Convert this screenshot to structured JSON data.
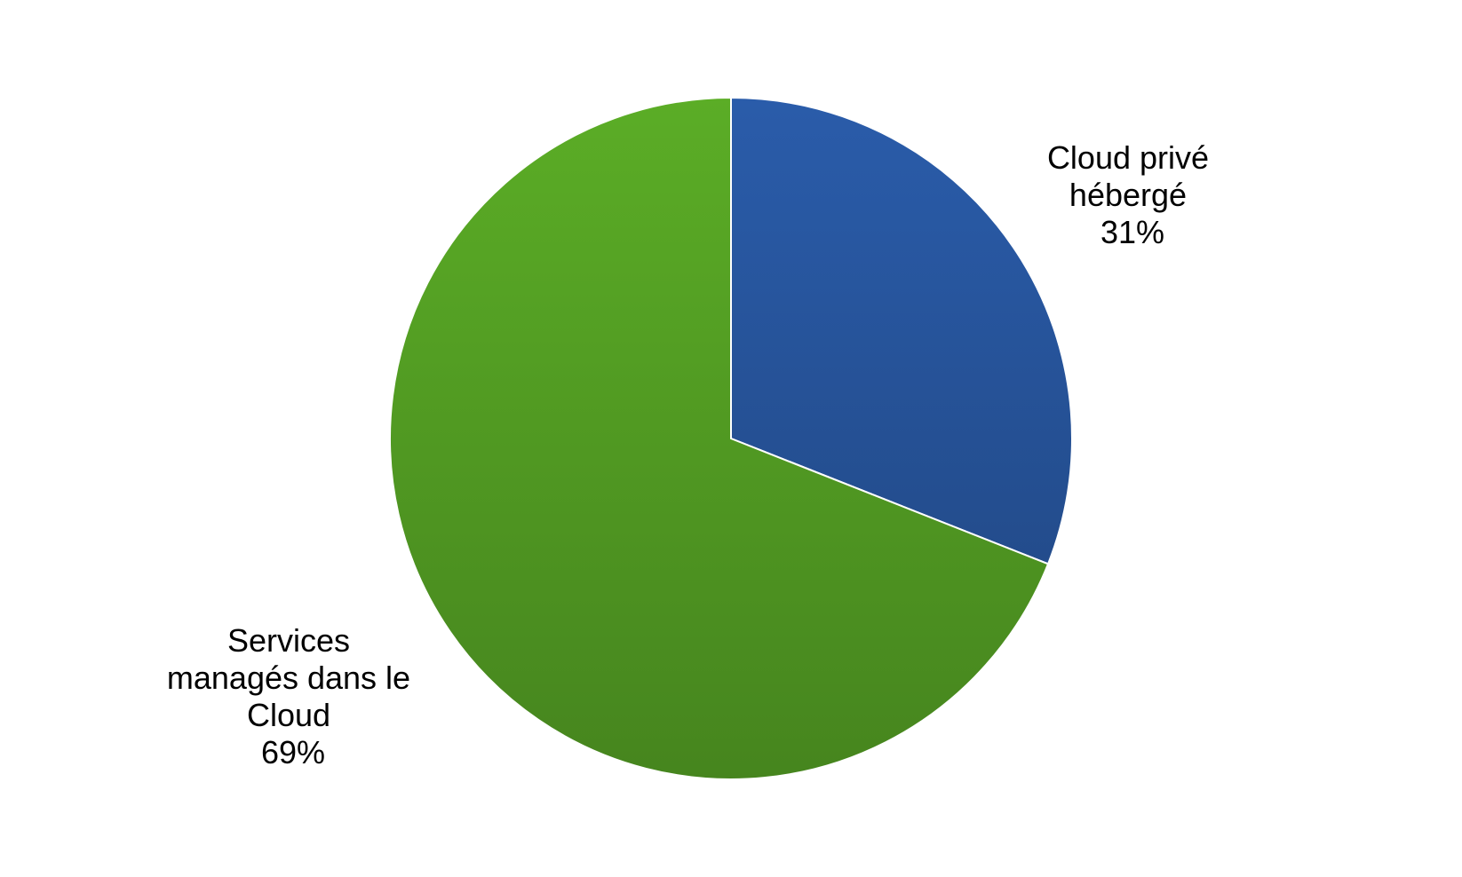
{
  "chart_data": {
    "type": "pie",
    "slices": [
      {
        "label_lines": [
          "Cloud privé",
          "hébergé"
        ],
        "value_label": "31%",
        "value": 31,
        "color": "#2A5CAA",
        "color_dark": "#234C8C"
      },
      {
        "label_lines": [
          "Services",
          "managés dans le",
          "Cloud"
        ],
        "value_label": "69%",
        "value": 69,
        "color": "#5BAD26",
        "color_dark": "#46851E"
      }
    ]
  }
}
